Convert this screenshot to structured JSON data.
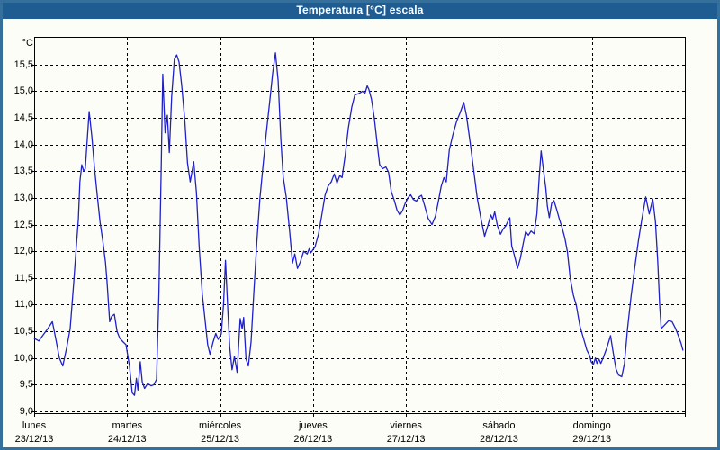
{
  "window": {
    "title": "Temperatura [°C] escala"
  },
  "colors": {
    "frame": "#35709c",
    "titlebar": "#1e5c92",
    "title_text": "#ffffff",
    "background": "#fcfdf6",
    "line": "#2020c8",
    "grid": "#000000",
    "axis_text": "#000000"
  },
  "chart_data": {
    "type": "line",
    "title": "Temperatura [°C] escala",
    "y_unit": "°C",
    "ylim": [
      9.0,
      16.02
    ],
    "grid": true,
    "grid_style": "dashed",
    "y_ticks": [
      {
        "value": 9.0,
        "label": "9,0"
      },
      {
        "value": 9.5,
        "label": "9,5"
      },
      {
        "value": 10.0,
        "label": "10,0"
      },
      {
        "value": 10.5,
        "label": "10,5"
      },
      {
        "value": 11.0,
        "label": "11,0"
      },
      {
        "value": 11.5,
        "label": "11,5"
      },
      {
        "value": 12.0,
        "label": "12,0"
      },
      {
        "value": 12.5,
        "label": "12,5"
      },
      {
        "value": 13.0,
        "label": "13,0"
      },
      {
        "value": 13.5,
        "label": "13,5"
      },
      {
        "value": 14.0,
        "label": "14,0"
      },
      {
        "value": 14.5,
        "label": "14,5"
      },
      {
        "value": 15.0,
        "label": "15,0"
      },
      {
        "value": 15.5,
        "label": "15,5"
      }
    ],
    "x_days": [
      {
        "name": "lunes",
        "date": "23/12/13"
      },
      {
        "name": "martes",
        "date": "24/12/13"
      },
      {
        "name": "miércoles",
        "date": "25/12/13"
      },
      {
        "name": "jueves",
        "date": "26/12/13"
      },
      {
        "name": "viernes",
        "date": "27/12/13"
      },
      {
        "name": "sábado",
        "date": "28/12/13"
      },
      {
        "name": "domingo",
        "date": "29/12/13"
      }
    ],
    "hours_per_day": 24,
    "x_total_hours": 168,
    "series": [
      {
        "name": "Temperatura",
        "color": "#2020c8",
        "points": [
          [
            0,
            10.37
          ],
          [
            1.2,
            10.32
          ],
          [
            2.3,
            10.43
          ],
          [
            3.5,
            10.55
          ],
          [
            4.7,
            10.68
          ],
          [
            5.6,
            10.35
          ],
          [
            6.5,
            10.0
          ],
          [
            7.4,
            9.85
          ],
          [
            8.4,
            10.2
          ],
          [
            9.3,
            10.55
          ],
          [
            10.2,
            11.4
          ],
          [
            10.7,
            11.9
          ],
          [
            11.4,
            12.6
          ],
          [
            11.8,
            13.3
          ],
          [
            12.3,
            13.62
          ],
          [
            12.8,
            13.5
          ],
          [
            13.2,
            13.55
          ],
          [
            13.7,
            14.1
          ],
          [
            14.2,
            14.62
          ],
          [
            14.9,
            14.15
          ],
          [
            15.6,
            13.55
          ],
          [
            16.3,
            13.05
          ],
          [
            17,
            12.55
          ],
          [
            17.7,
            12.2
          ],
          [
            18.4,
            11.8
          ],
          [
            18.8,
            11.45
          ],
          [
            19.5,
            10.68
          ],
          [
            20,
            10.78
          ],
          [
            20.7,
            10.82
          ],
          [
            21.4,
            10.5
          ],
          [
            22.1,
            10.37
          ],
          [
            23,
            10.3
          ],
          [
            23.7,
            10.25
          ],
          [
            24.6,
            9.85
          ],
          [
            25.3,
            9.35
          ],
          [
            25.9,
            9.3
          ],
          [
            26.4,
            9.62
          ],
          [
            26.8,
            9.4
          ],
          [
            27.4,
            9.93
          ],
          [
            27.9,
            9.55
          ],
          [
            28.5,
            9.43
          ],
          [
            29.3,
            9.52
          ],
          [
            30.2,
            9.48
          ],
          [
            30.9,
            9.5
          ],
          [
            31.6,
            9.6
          ],
          [
            32.2,
            11.2
          ],
          [
            32.8,
            13.6
          ],
          [
            33.2,
            15.32
          ],
          [
            33.8,
            14.22
          ],
          [
            34.4,
            14.55
          ],
          [
            34.9,
            13.85
          ],
          [
            35.5,
            14.9
          ],
          [
            36.2,
            15.6
          ],
          [
            36.8,
            15.68
          ],
          [
            37.4,
            15.55
          ],
          [
            38.1,
            15.1
          ],
          [
            38.9,
            14.45
          ],
          [
            39.6,
            13.65
          ],
          [
            40.3,
            13.3
          ],
          [
            41.2,
            13.68
          ],
          [
            41.9,
            13.1
          ],
          [
            42.6,
            12.1
          ],
          [
            43.4,
            11.2
          ],
          [
            44.3,
            10.6
          ],
          [
            44.8,
            10.25
          ],
          [
            45.4,
            10.07
          ],
          [
            46.2,
            10.3
          ],
          [
            46.9,
            10.46
          ],
          [
            47.5,
            10.35
          ],
          [
            48.3,
            10.45
          ],
          [
            48.9,
            11.0
          ],
          [
            49.4,
            11.83
          ],
          [
            50,
            10.9
          ],
          [
            50.5,
            10.2
          ],
          [
            51.1,
            9.78
          ],
          [
            51.7,
            10.03
          ],
          [
            52.4,
            9.73
          ],
          [
            53.2,
            10.74
          ],
          [
            53.7,
            10.55
          ],
          [
            54.1,
            10.76
          ],
          [
            54.7,
            9.98
          ],
          [
            55.3,
            9.85
          ],
          [
            56,
            10.3
          ],
          [
            56.7,
            11.2
          ],
          [
            57.5,
            12.2
          ],
          [
            58.3,
            13.0
          ],
          [
            59.1,
            13.6
          ],
          [
            59.9,
            14.2
          ],
          [
            60.8,
            14.8
          ],
          [
            61.6,
            15.35
          ],
          [
            62.3,
            15.72
          ],
          [
            63,
            15.2
          ],
          [
            63.7,
            14.1
          ],
          [
            64.3,
            13.4
          ],
          [
            65.1,
            13.0
          ],
          [
            66,
            12.35
          ],
          [
            66.7,
            11.78
          ],
          [
            67.3,
            11.95
          ],
          [
            68,
            11.68
          ],
          [
            68.7,
            11.8
          ],
          [
            69.6,
            12.0
          ],
          [
            70.5,
            11.95
          ],
          [
            71,
            12.05
          ],
          [
            71.4,
            11.97
          ],
          [
            72.5,
            12.08
          ],
          [
            73.4,
            12.32
          ],
          [
            74.2,
            12.65
          ],
          [
            75.1,
            13.05
          ],
          [
            75.9,
            13.22
          ],
          [
            76.7,
            13.3
          ],
          [
            77.5,
            13.45
          ],
          [
            78.2,
            13.28
          ],
          [
            78.9,
            13.42
          ],
          [
            79.5,
            13.38
          ],
          [
            80.3,
            13.8
          ],
          [
            81.1,
            14.3
          ],
          [
            82,
            14.7
          ],
          [
            82.8,
            14.93
          ],
          [
            83.9,
            14.96
          ],
          [
            84.8,
            15.0
          ],
          [
            85.4,
            14.96
          ],
          [
            86,
            15.1
          ],
          [
            86.4,
            15.04
          ],
          [
            87.1,
            14.85
          ],
          [
            87.8,
            14.5
          ],
          [
            88.5,
            14.05
          ],
          [
            89.2,
            13.62
          ],
          [
            90,
            13.55
          ],
          [
            90.8,
            13.58
          ],
          [
            91.5,
            13.48
          ],
          [
            92.2,
            13.12
          ],
          [
            93,
            12.95
          ],
          [
            93.7,
            12.77
          ],
          [
            94.4,
            12.68
          ],
          [
            95.1,
            12.76
          ],
          [
            95.8,
            12.9
          ],
          [
            96.5,
            13.0
          ],
          [
            97.2,
            13.06
          ],
          [
            97.9,
            12.97
          ],
          [
            98.7,
            12.94
          ],
          [
            99.4,
            13.02
          ],
          [
            100,
            13.05
          ],
          [
            100.8,
            12.86
          ],
          [
            101.7,
            12.62
          ],
          [
            102.7,
            12.5
          ],
          [
            103.6,
            12.66
          ],
          [
            104.4,
            12.95
          ],
          [
            105.1,
            13.22
          ],
          [
            105.8,
            13.38
          ],
          [
            106.4,
            13.3
          ],
          [
            107.2,
            13.9
          ],
          [
            108.1,
            14.18
          ],
          [
            109.1,
            14.44
          ],
          [
            110,
            14.6
          ],
          [
            110.9,
            14.79
          ],
          [
            111.6,
            14.55
          ],
          [
            112.6,
            14.02
          ],
          [
            113.5,
            13.5
          ],
          [
            114.4,
            13.0
          ],
          [
            115.4,
            12.6
          ],
          [
            116.3,
            12.28
          ],
          [
            117.2,
            12.5
          ],
          [
            117.9,
            12.68
          ],
          [
            118.4,
            12.6
          ],
          [
            118.9,
            12.74
          ],
          [
            119.6,
            12.48
          ],
          [
            120.4,
            12.32
          ],
          [
            121.1,
            12.42
          ],
          [
            121.8,
            12.48
          ],
          [
            122.3,
            12.56
          ],
          [
            122.8,
            12.63
          ],
          [
            123.3,
            12.1
          ],
          [
            123.9,
            11.95
          ],
          [
            124.8,
            11.68
          ],
          [
            125.5,
            11.86
          ],
          [
            126.2,
            12.12
          ],
          [
            126.9,
            12.37
          ],
          [
            127.6,
            12.3
          ],
          [
            128.3,
            12.38
          ],
          [
            129.1,
            12.33
          ],
          [
            129.8,
            12.7
          ],
          [
            130.4,
            13.4
          ],
          [
            130.9,
            13.88
          ],
          [
            131.5,
            13.52
          ],
          [
            132.1,
            13.18
          ],
          [
            132.5,
            12.85
          ],
          [
            133,
            12.63
          ],
          [
            133.6,
            12.9
          ],
          [
            134.2,
            12.95
          ],
          [
            134.9,
            12.78
          ],
          [
            135.6,
            12.6
          ],
          [
            136.3,
            12.44
          ],
          [
            137,
            12.25
          ],
          [
            137.7,
            11.98
          ],
          [
            138.4,
            11.5
          ],
          [
            139.2,
            11.18
          ],
          [
            140,
            10.98
          ],
          [
            140.9,
            10.6
          ],
          [
            141.9,
            10.35
          ],
          [
            142.7,
            10.15
          ],
          [
            143.4,
            10.05
          ],
          [
            143.8,
            9.93
          ],
          [
            144.4,
            9.88
          ],
          [
            144.9,
            10.0
          ],
          [
            145.3,
            9.9
          ],
          [
            145.8,
            9.98
          ],
          [
            146.3,
            9.9
          ],
          [
            147,
            10.02
          ],
          [
            147.9,
            10.2
          ],
          [
            148.8,
            10.42
          ],
          [
            149.5,
            10.1
          ],
          [
            150.2,
            9.8
          ],
          [
            150.9,
            9.68
          ],
          [
            151.7,
            9.65
          ],
          [
            152.4,
            9.9
          ],
          [
            153.2,
            10.55
          ],
          [
            154.1,
            11.15
          ],
          [
            155.1,
            11.72
          ],
          [
            156,
            12.2
          ],
          [
            156.9,
            12.6
          ],
          [
            157.9,
            13.02
          ],
          [
            158.8,
            12.7
          ],
          [
            159.7,
            12.98
          ],
          [
            160.4,
            12.55
          ],
          [
            161,
            11.8
          ],
          [
            161.5,
            11.0
          ],
          [
            161.9,
            10.55
          ],
          [
            162.9,
            10.63
          ],
          [
            163.8,
            10.7
          ],
          [
            164.7,
            10.68
          ],
          [
            165.6,
            10.55
          ],
          [
            166.3,
            10.42
          ],
          [
            167,
            10.28
          ],
          [
            167.5,
            10.15
          ]
        ]
      }
    ]
  }
}
